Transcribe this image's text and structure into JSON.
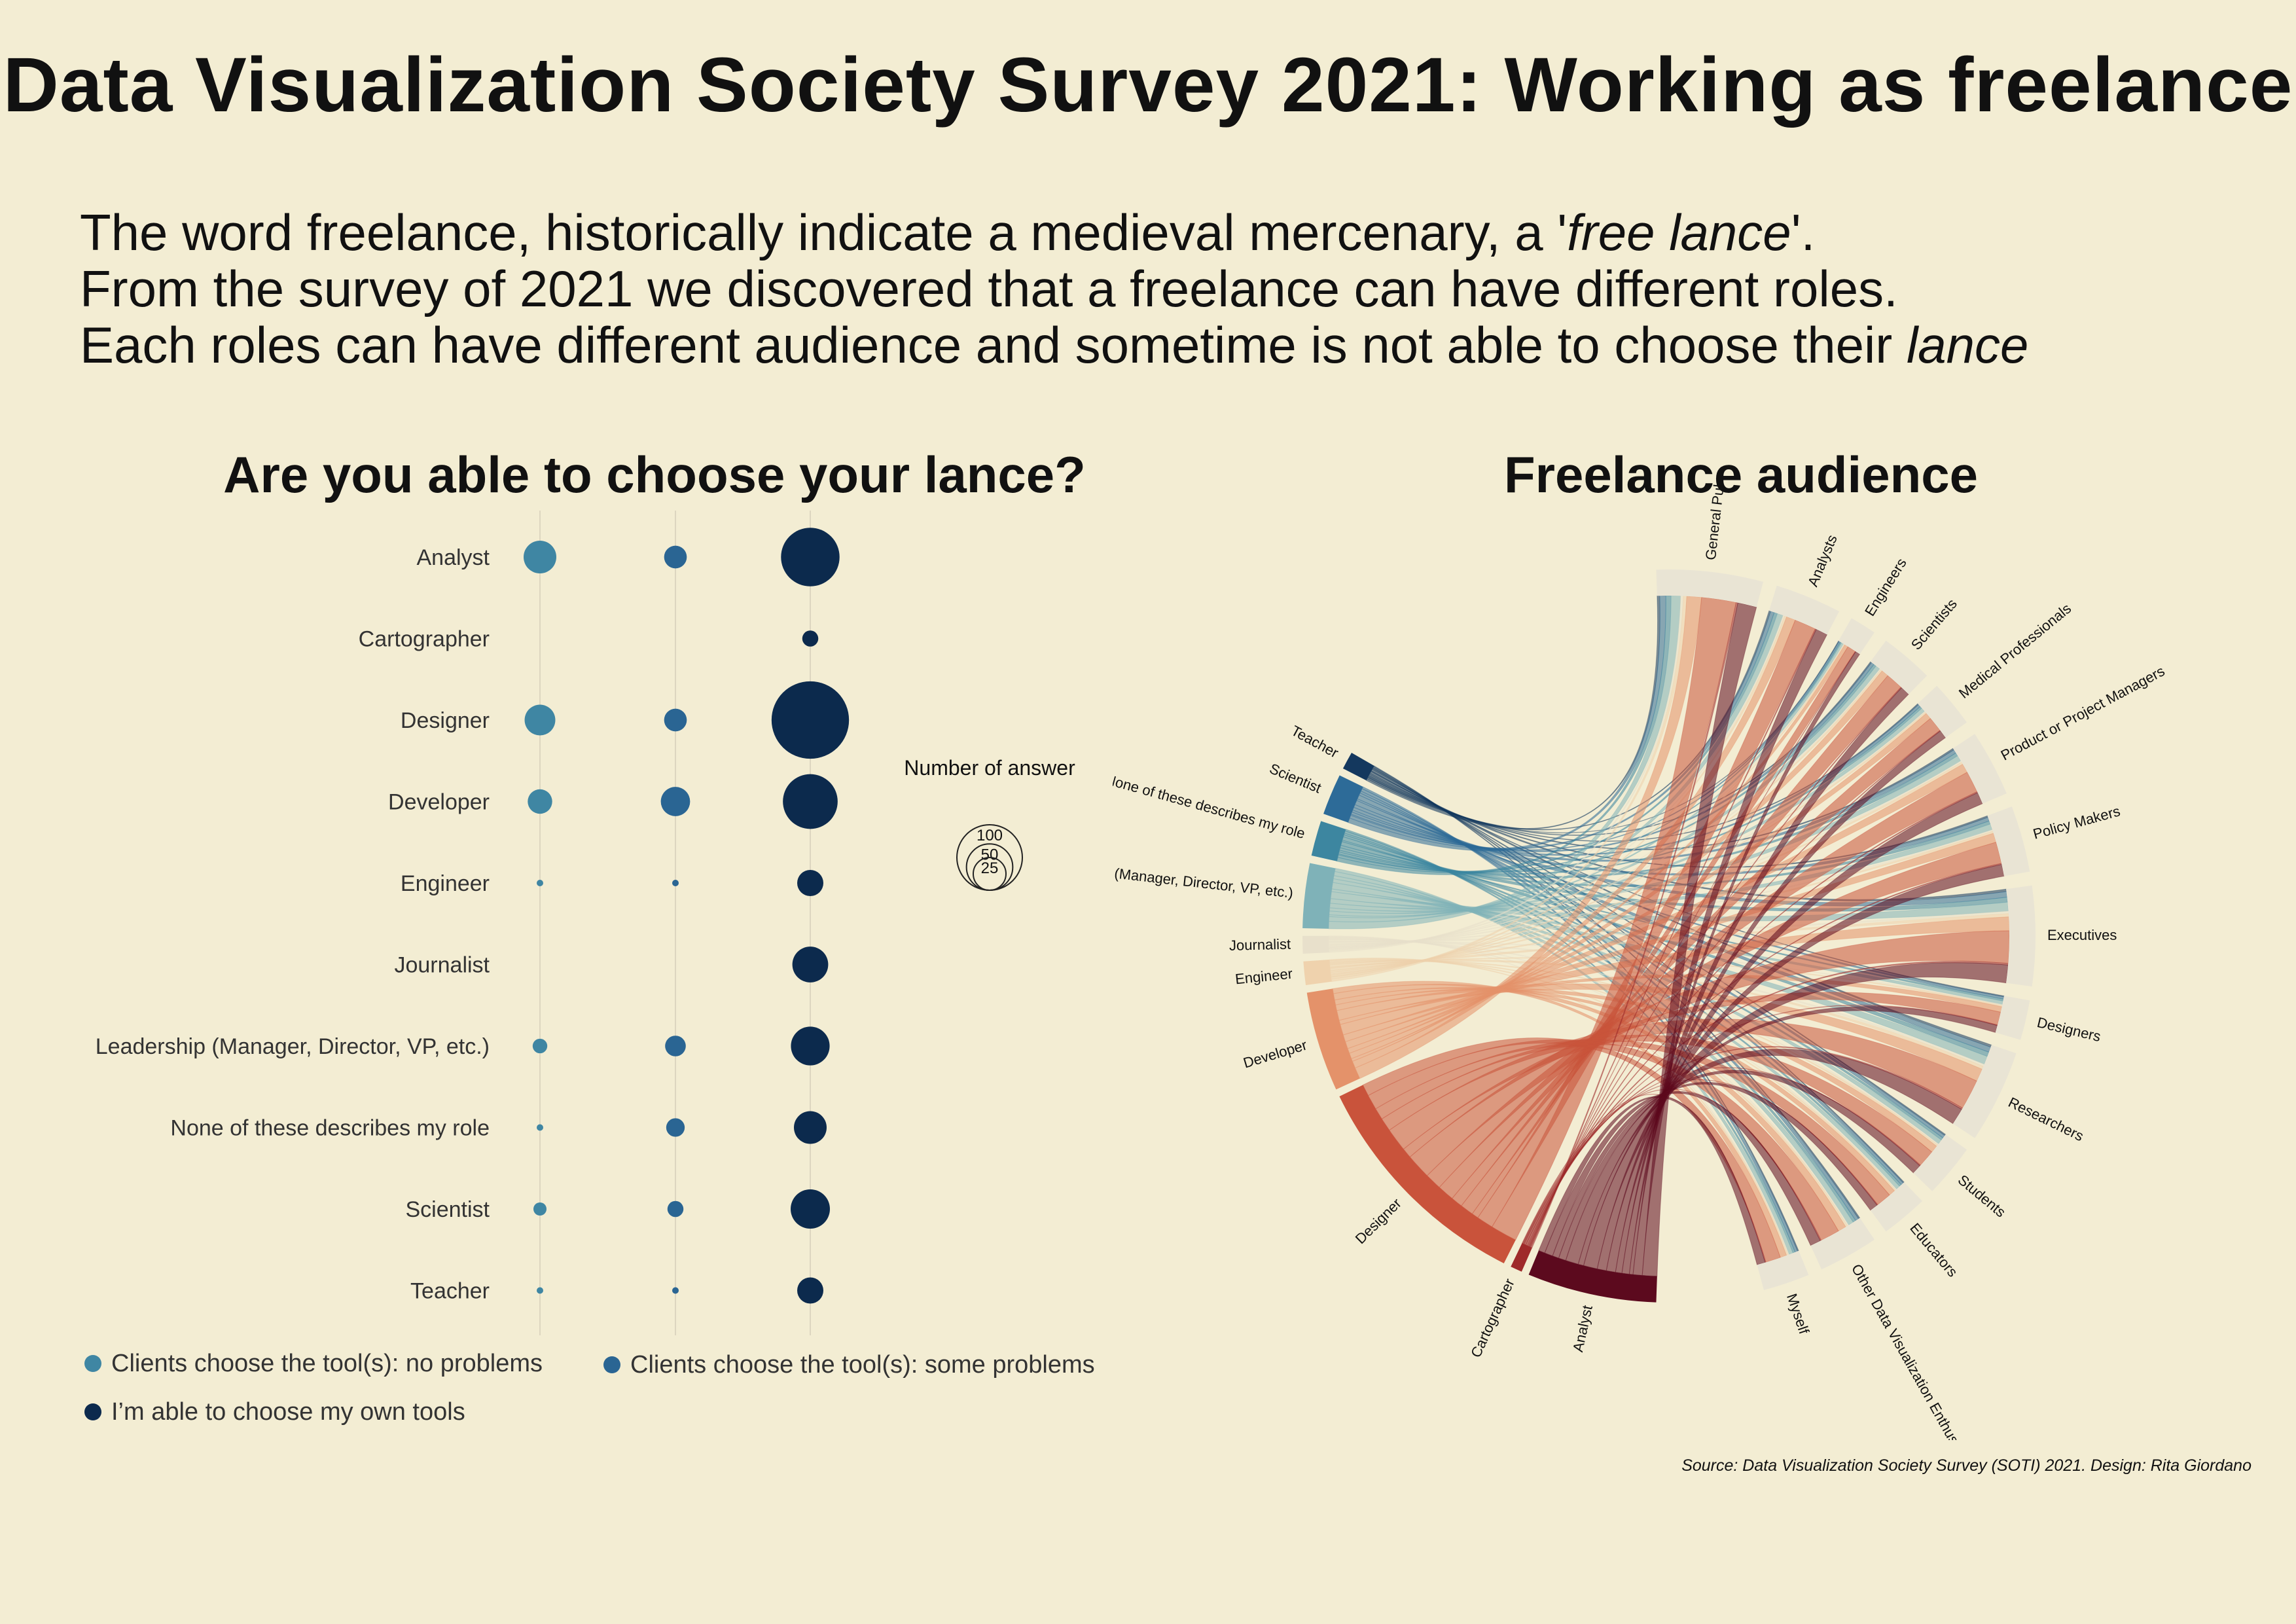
{
  "title": "Data Visualization Society Survey 2021: Working as freelance",
  "intro": {
    "line1_a": "The word freelance, historically indicate a medieval mercenary, a '",
    "line1_em": "free lance",
    "line1_b": "'.",
    "line2": "From the survey of 2021 we discovered that a freelance can have different roles.",
    "line3_a": "Each roles can have different audience and sometime is not able to choose their ",
    "line3_em": "lance"
  },
  "source": "Source: Data Visualization Society Survey (SOTI) 2021. Design: Rita Giordano",
  "chart_data": [
    {
      "type": "scatter",
      "title": "Are you able to choose your lance?",
      "categories": [
        "Analyst",
        "Cartographer",
        "Designer",
        "Developer",
        "Engineer",
        "Journalist",
        "Leadership (Manager, Director, VP, etc.)",
        "None of these describes my role",
        "Scientist",
        "Teacher"
      ],
      "series": [
        {
          "name": "Clients choose the tool(s): no problems",
          "color": "#3f86a3",
          "values": [
            25,
            0,
            22,
            14,
            1,
            0,
            5,
            1,
            4,
            1
          ]
        },
        {
          "name": "Clients choose the tool(s): some problems",
          "color": "#2a6593",
          "values": [
            12,
            0,
            12,
            20,
            1,
            0,
            10,
            8,
            6,
            1
          ]
        },
        {
          "name": "I’m able to choose my own tools",
          "color": "#0c2a4d",
          "values": [
            80,
            6,
            140,
            70,
            16,
            30,
            35,
            25,
            36,
            16
          ]
        }
      ],
      "size_legend": {
        "title": "Number of answer",
        "values": [
          100,
          50,
          25
        ]
      }
    },
    {
      "type": "chord",
      "title": "Freelance audience",
      "roles": [
        {
          "name": "Teacher",
          "weight": 3,
          "color": "#14385e"
        },
        {
          "name": "Scientist",
          "weight": 7,
          "color": "#2d6b98"
        },
        {
          "name": "None of these describes my role",
          "weight": 6,
          "color": "#3d86a0"
        },
        {
          "name": "Leadership (Manager, Director, VP, etc.)",
          "weight": 11,
          "color": "#7fb2b8"
        },
        {
          "name": "Journalist",
          "weight": 3,
          "color": "#e8e0cb"
        },
        {
          "name": "Engineer",
          "weight": 4,
          "color": "#efd2ad"
        },
        {
          "name": "Developer",
          "weight": 17,
          "color": "#e4926a"
        },
        {
          "name": "Designer",
          "weight": 40,
          "color": "#c9533b"
        },
        {
          "name": "Cartographer",
          "weight": 2,
          "color": "#9f2a2a"
        },
        {
          "name": "Analyst",
          "weight": 22,
          "color": "#5c0a1e"
        }
      ],
      "audiences": [
        {
          "name": "General Public",
          "weight": 16
        },
        {
          "name": "Analysts",
          "weight": 10
        },
        {
          "name": "Engineers",
          "weight": 4
        },
        {
          "name": "Scientists",
          "weight": 8
        },
        {
          "name": "Medical Professionals",
          "weight": 7
        },
        {
          "name": "Product or Project Managers",
          "weight": 10
        },
        {
          "name": "Policy Makers",
          "weight": 10
        },
        {
          "name": "Executives",
          "weight": 15
        },
        {
          "name": "Designers",
          "weight": 6
        },
        {
          "name": "Researchers",
          "weight": 14
        },
        {
          "name": "Students",
          "weight": 8
        },
        {
          "name": "Educators",
          "weight": 7
        },
        {
          "name": "Other Data Visualization Enthusiasts",
          "weight": 9
        },
        {
          "name": "Myself",
          "weight": 7
        }
      ]
    }
  ]
}
